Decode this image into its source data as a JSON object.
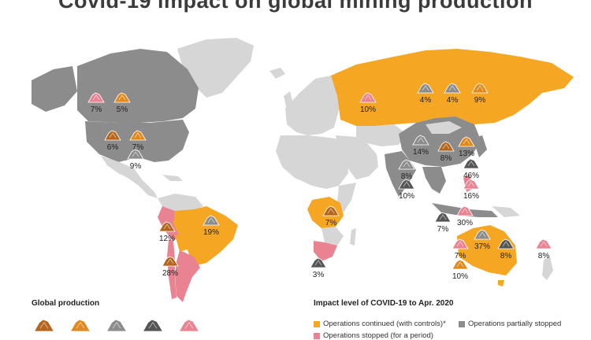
{
  "title": "Covid-19 impact on global mining production",
  "legend": {
    "production_title": "Global production",
    "impact_title": "Impact level of COVID-19 to Apr. 2020",
    "items": [
      {
        "label": "Operations continued (with controls)*",
        "color": "#f5a623"
      },
      {
        "label": "Operations partially stopped",
        "color": "#8c8c8c"
      },
      {
        "label": "Operations stopped (for a period)",
        "color": "#e98291"
      }
    ],
    "production_icons": [
      "#b5651d",
      "#e08a1e",
      "#8c8c8c",
      "#555555",
      "#e98291"
    ]
  },
  "colors": {
    "continued": "#f5a623",
    "partial": "#8c8c8c",
    "stopped": "#e98291",
    "no_data": "#d6d6d6"
  },
  "markers": [
    {
      "region": "Canada",
      "value": "7%",
      "color": "#e98291"
    },
    {
      "region": "Canada",
      "value": "5%",
      "color": "#e08a1e"
    },
    {
      "region": "USA",
      "value": "6%",
      "color": "#b5651d"
    },
    {
      "region": "USA",
      "value": "7%",
      "color": "#e08a1e"
    },
    {
      "region": "Mexico",
      "value": "9%",
      "color": "#8c8c8c"
    },
    {
      "region": "Russia",
      "value": "10%",
      "color": "#e98291"
    },
    {
      "region": "Russia",
      "value": "4%",
      "color": "#8c8c8c"
    },
    {
      "region": "Russia",
      "value": "4%",
      "color": "#8c8c8c"
    },
    {
      "region": "Russia",
      "value": "9%",
      "color": "#e08a1e"
    },
    {
      "region": "China",
      "value": "14%",
      "color": "#8c8c8c"
    },
    {
      "region": "China",
      "value": "13%",
      "color": "#e08a1e"
    },
    {
      "region": "China",
      "value": "8%",
      "color": "#b5651d"
    },
    {
      "region": "India",
      "value": "8%",
      "color": "#8c8c8c"
    },
    {
      "region": "India",
      "value": "10%",
      "color": "#555555"
    },
    {
      "region": "East Asia",
      "value": "46%",
      "color": "#555555"
    },
    {
      "region": "Philippines",
      "value": "16%",
      "color": "#e98291"
    },
    {
      "region": "Indonesia",
      "value": "30%",
      "color": "#e98291"
    },
    {
      "region": "Indonesia",
      "value": "7%",
      "color": "#555555"
    },
    {
      "region": "Australia",
      "value": "37%",
      "color": "#8c8c8c"
    },
    {
      "region": "Australia",
      "value": "7%",
      "color": "#e98291"
    },
    {
      "region": "Australia",
      "value": "8%",
      "color": "#555555"
    },
    {
      "region": "Australia",
      "value": "10%",
      "color": "#e08a1e"
    },
    {
      "region": "New Zealand",
      "value": "8%",
      "color": "#e98291"
    },
    {
      "region": "Brazil",
      "value": "19%",
      "color": "#8c8c8c"
    },
    {
      "region": "Peru",
      "value": "12%",
      "color": "#b5651d"
    },
    {
      "region": "Chile",
      "value": "28%",
      "color": "#b5651d"
    },
    {
      "region": "Central Africa",
      "value": "7%",
      "color": "#b5651d"
    },
    {
      "region": "South Africa",
      "value": "3%",
      "color": "#555555"
    }
  ]
}
